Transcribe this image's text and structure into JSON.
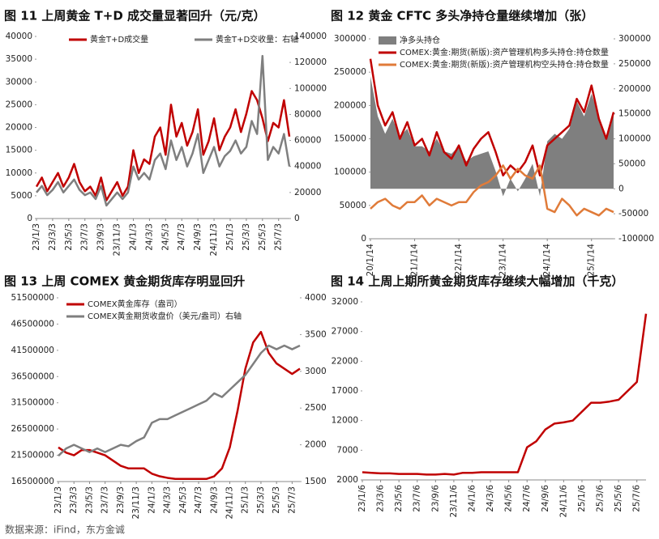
{
  "chart_data": [
    {
      "type": "line",
      "title": "图 11  上周黄金 T+D 成交量显著回升（元/克）",
      "legend": "top",
      "categories": [
        "23/1/3",
        null,
        null,
        "23/3/3",
        null,
        null,
        "23/5/3",
        null,
        null,
        "23/7/3",
        null,
        null,
        "23/9/3",
        null,
        null,
        "23/11/3",
        null,
        null,
        "24/1/3",
        null,
        null,
        "24/3/3",
        null,
        null,
        "24/5/3",
        null,
        null,
        "24/7/3",
        null,
        null,
        "24/9/3",
        null,
        null,
        "24/11/3",
        null,
        null,
        "25/1/3",
        null,
        null,
        "25/3/3",
        null,
        null,
        "25/5/3",
        null,
        null,
        "25/7/3",
        null,
        null
      ],
      "ylim": [
        0,
        40000
      ],
      "yticks": [
        0,
        5000,
        10000,
        15000,
        20000,
        25000,
        30000,
        35000,
        40000
      ],
      "y2lim": [
        0,
        140000
      ],
      "y2ticks": [
        0,
        20000,
        40000,
        60000,
        80000,
        100000,
        120000,
        140000
      ],
      "series": [
        {
          "name": "黄金T+D成交量",
          "color": "#c00000",
          "kind": "line",
          "values": [
            7000,
            9000,
            6000,
            8000,
            10000,
            7000,
            9000,
            12000,
            8000,
            6000,
            7000,
            5000,
            9000,
            4000,
            6000,
            8000,
            5000,
            7000,
            15000,
            10000,
            13000,
            12000,
            18000,
            20000,
            14000,
            25000,
            18000,
            21000,
            16000,
            19000,
            24000,
            14000,
            17000,
            22000,
            15000,
            18000,
            20000,
            24000,
            19000,
            23000,
            28000,
            26000,
            22000,
            17000,
            21000,
            20000,
            26000,
            18000
          ]
        },
        {
          "name": "黄金T+D交收量：右轴",
          "color": "#7f7f7f",
          "kind": "line",
          "axis": "y2",
          "values": [
            20000,
            25000,
            18000,
            22000,
            28000,
            20000,
            25000,
            30000,
            22000,
            18000,
            20000,
            15000,
            25000,
            10000,
            15000,
            20000,
            15000,
            20000,
            40000,
            30000,
            35000,
            30000,
            45000,
            50000,
            38000,
            60000,
            45000,
            55000,
            40000,
            50000,
            65000,
            35000,
            45000,
            55000,
            40000,
            48000,
            52000,
            60000,
            50000,
            55000,
            75000,
            65000,
            125000,
            45000,
            55000,
            50000,
            65000,
            40000
          ]
        }
      ]
    },
    {
      "type": "line",
      "title": "图 12  黄金 CFTC 多头净持仓量继续增加（张）",
      "legend": "upper left",
      "categories": [
        "20/1/14",
        null,
        null,
        null,
        null,
        null,
        "21/1/14",
        null,
        null,
        null,
        null,
        null,
        "22/1/14",
        null,
        null,
        null,
        null,
        null,
        "23/1/14",
        null,
        null,
        null,
        null,
        null,
        "24/1/14",
        null,
        null,
        null,
        null,
        null,
        "25/1/14",
        null,
        null,
        null
      ],
      "ylim": [
        0,
        300000
      ],
      "yticks": [
        0,
        50000,
        100000,
        150000,
        200000,
        250000,
        300000
      ],
      "y2lim": [
        -100000,
        300000
      ],
      "y2ticks": [
        -100000,
        -50000,
        0,
        50000,
        100000,
        150000,
        200000,
        250000,
        300000
      ],
      "series": [
        {
          "name": "净多头持仓",
          "color": "#7f7f7f",
          "kind": "area",
          "axis": "y2",
          "values": [
            225000,
            145000,
            110000,
            140000,
            105000,
            120000,
            85000,
            85000,
            75000,
            100000,
            75000,
            70000,
            85000,
            55000,
            65000,
            70000,
            75000,
            35000,
            -15000,
            20000,
            -5000,
            20000,
            50000,
            -15000,
            95000,
            110000,
            100000,
            120000,
            175000,
            145000,
            190000,
            145000,
            105000,
            150000
          ]
        },
        {
          "name": "COMEX:黄金:期货(新版):资产管理机构多头持仓:持仓数量",
          "color": "#c00000",
          "kind": "line",
          "values": [
            270000,
            200000,
            170000,
            190000,
            150000,
            175000,
            140000,
            150000,
            125000,
            160000,
            130000,
            120000,
            140000,
            110000,
            135000,
            150000,
            160000,
            130000,
            95000,
            110000,
            100000,
            115000,
            140000,
            95000,
            140000,
            150000,
            160000,
            170000,
            210000,
            190000,
            230000,
            180000,
            150000,
            190000
          ]
        },
        {
          "name": "COMEX:黄金:期货(新版):资产管理机构空头持仓:持仓数量",
          "color": "#e07b39",
          "kind": "line",
          "values": [
            45000,
            55000,
            60000,
            50000,
            45000,
            55000,
            55000,
            65000,
            50000,
            60000,
            55000,
            50000,
            55000,
            55000,
            70000,
            80000,
            85000,
            95000,
            110000,
            90000,
            105000,
            95000,
            90000,
            110000,
            45000,
            40000,
            60000,
            50000,
            35000,
            45000,
            40000,
            35000,
            45000,
            40000
          ]
        }
      ]
    },
    {
      "type": "line",
      "title": "图 13  上周 COMEX 黄金期货库存明显回升",
      "legend": "upper left",
      "categories": [
        "23/1/3",
        null,
        "23/3/3",
        null,
        "23/5/3",
        null,
        "23/7/3",
        null,
        "23/9/3",
        null,
        "23/11/3",
        null,
        "24/1/3",
        null,
        "24/3/3",
        null,
        "24/5/3",
        null,
        "24/7/3",
        null,
        "24/9/3",
        null,
        "24/11/3",
        null,
        "25/1/3",
        null,
        "25/3/3",
        null,
        "25/5/3",
        null,
        "25/7/3",
        null
      ],
      "ylim": [
        16500000,
        51500000
      ],
      "yticks": [
        16500000,
        21500000,
        26500000,
        31500000,
        36500000,
        41500000,
        46500000,
        51500000
      ],
      "y2lim": [
        1500,
        4000
      ],
      "y2ticks": [
        1500,
        2000,
        2500,
        3000,
        3500,
        4000
      ],
      "series": [
        {
          "name": "COMEX黄金库存（盎司）",
          "color": "#c00000",
          "kind": "line",
          "values": [
            23000000,
            22000000,
            21500000,
            22500000,
            22500000,
            22000000,
            21500000,
            20500000,
            19500000,
            19000000,
            19000000,
            19000000,
            18000000,
            17500000,
            17200000,
            17000000,
            17000000,
            17000000,
            17000000,
            17000000,
            17500000,
            19000000,
            23000000,
            30000000,
            38000000,
            43000000,
            45000000,
            41000000,
            39000000,
            38000000,
            37000000,
            38000000
          ]
        },
        {
          "name": "COMEX黄金期货收盘价（美元/盎司）右轴",
          "color": "#7f7f7f",
          "kind": "line",
          "axis": "y2",
          "values": [
            1850,
            1950,
            2000,
            1950,
            1900,
            1950,
            1900,
            1950,
            2000,
            1980,
            2050,
            2100,
            2300,
            2350,
            2350,
            2400,
            2450,
            2500,
            2550,
            2600,
            2700,
            2650,
            2750,
            2850,
            2950,
            3100,
            3250,
            3350,
            3300,
            3350,
            3300,
            3350
          ]
        }
      ]
    },
    {
      "type": "line",
      "title": "图 14  上周上期所黄金期货库存继续大幅增加（千克）",
      "categories": [
        "23/1/6",
        null,
        "23/3/6",
        null,
        "23/5/6",
        null,
        "23/7/6",
        null,
        "23/9/6",
        null,
        "23/11/6",
        null,
        "24/1/6",
        null,
        "24/3/6",
        null,
        "24/5/6",
        null,
        "24/7/6",
        null,
        "24/9/6",
        null,
        "24/11/6",
        null,
        "25/1/6",
        null,
        "25/3/6",
        null,
        "25/5/6",
        null,
        "25/7/6",
        null
      ],
      "ylim": [
        2000,
        32000
      ],
      "yticks": [
        2000,
        7000,
        12000,
        17000,
        22000,
        27000,
        32000
      ],
      "series": [
        {
          "color": "#c00000",
          "kind": "line",
          "values": [
            3300,
            3200,
            3100,
            3100,
            3000,
            3000,
            3000,
            2900,
            2900,
            3000,
            2900,
            3200,
            3200,
            3300,
            3300,
            3300,
            3300,
            3300,
            7500,
            8500,
            10500,
            11500,
            11700,
            12000,
            13500,
            15000,
            15000,
            15200,
            15500,
            17000,
            18500,
            30000
          ]
        }
      ]
    }
  ],
  "source": "数据来源：iFind，东方金诚"
}
